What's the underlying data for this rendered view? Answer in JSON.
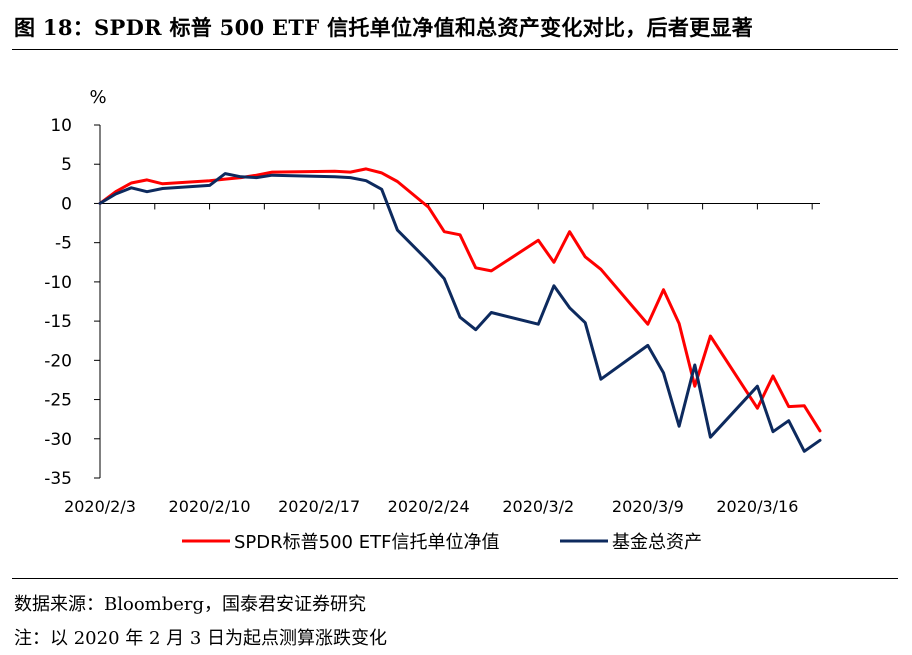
{
  "figure": {
    "title": "图 18：SPDR 标普 500 ETF 信托单位净值和总资产变化对比，后者更显著",
    "source": "数据来源：Bloomberg，国泰君安证券研究",
    "note": "注：以 2020 年 2 月 3 日为起点测算涨跌变化"
  },
  "colors": {
    "nav": "#ff0000",
    "assets": "#0d2a5e"
  },
  "chart_data": {
    "type": "line",
    "title": "",
    "xlabel": "",
    "ylabel": "%",
    "ylim": [
      -35,
      10
    ],
    "yticks": [
      10,
      5,
      0,
      -5,
      -10,
      -15,
      -20,
      -25,
      -30,
      -35
    ],
    "xlim": [
      "2020-02-03",
      "2020-03-20"
    ],
    "xticks": [
      "2020/2/3",
      "2020/2/10",
      "2020/2/17",
      "2020/2/24",
      "2020/3/2",
      "2020/3/9",
      "2020/3/16"
    ],
    "xtick_dates": [
      "2020-02-03",
      "2020-02-10",
      "2020-02-17",
      "2020-02-24",
      "2020-03-02",
      "2020-03-09",
      "2020-03-16"
    ],
    "grid": false,
    "legend": "bottom",
    "series": [
      {
        "name": "SPDR标普500 ETF信托单位净值",
        "color": "#ff0000",
        "points": [
          [
            "2020-02-03",
            0
          ],
          [
            "2020-02-04",
            1.5
          ],
          [
            "2020-02-05",
            2.6
          ],
          [
            "2020-02-06",
            3.0
          ],
          [
            "2020-02-07",
            2.5
          ],
          [
            "2020-02-10",
            2.9
          ],
          [
            "2020-02-11",
            3.1
          ],
          [
            "2020-02-12",
            3.3
          ],
          [
            "2020-02-13",
            3.6
          ],
          [
            "2020-02-14",
            4.0
          ],
          [
            "2020-02-18",
            4.1
          ],
          [
            "2020-02-19",
            4.0
          ],
          [
            "2020-02-20",
            4.4
          ],
          [
            "2020-02-21",
            3.9
          ],
          [
            "2020-02-22",
            2.8
          ],
          [
            "2020-02-24",
            -0.5
          ],
          [
            "2020-02-25",
            -3.6
          ],
          [
            "2020-02-26",
            -4.0
          ],
          [
            "2020-02-27",
            -8.2
          ],
          [
            "2020-02-28",
            -8.6
          ],
          [
            "2020-03-02",
            -4.7
          ],
          [
            "2020-03-03",
            -7.5
          ],
          [
            "2020-03-04",
            -3.6
          ],
          [
            "2020-03-05",
            -6.8
          ],
          [
            "2020-03-06",
            -8.4
          ],
          [
            "2020-03-09",
            -15.4
          ],
          [
            "2020-03-10",
            -11.0
          ],
          [
            "2020-03-11",
            -15.3
          ],
          [
            "2020-03-12",
            -23.3
          ],
          [
            "2020-03-13",
            -16.9
          ],
          [
            "2020-03-16",
            -26.1
          ],
          [
            "2020-03-17",
            -22.0
          ],
          [
            "2020-03-18",
            -25.9
          ],
          [
            "2020-03-19",
            -25.8
          ],
          [
            "2020-03-20",
            -29.0
          ]
        ]
      },
      {
        "name": "基金总资产",
        "color": "#0d2a5e",
        "points": [
          [
            "2020-02-03",
            0
          ],
          [
            "2020-02-04",
            1.2
          ],
          [
            "2020-02-05",
            2.0
          ],
          [
            "2020-02-06",
            1.5
          ],
          [
            "2020-02-07",
            1.9
          ],
          [
            "2020-02-10",
            2.3
          ],
          [
            "2020-02-11",
            3.8
          ],
          [
            "2020-02-12",
            3.4
          ],
          [
            "2020-02-13",
            3.3
          ],
          [
            "2020-02-14",
            3.6
          ],
          [
            "2020-02-18",
            3.4
          ],
          [
            "2020-02-19",
            3.3
          ],
          [
            "2020-02-20",
            2.9
          ],
          [
            "2020-02-21",
            1.8
          ],
          [
            "2020-02-22",
            -3.4
          ],
          [
            "2020-02-24",
            -7.4
          ],
          [
            "2020-02-25",
            -9.6
          ],
          [
            "2020-02-26",
            -14.5
          ],
          [
            "2020-02-27",
            -16.1
          ],
          [
            "2020-02-28",
            -13.9
          ],
          [
            "2020-03-02",
            -15.4
          ],
          [
            "2020-03-03",
            -10.5
          ],
          [
            "2020-03-04",
            -13.3
          ],
          [
            "2020-03-05",
            -15.2
          ],
          [
            "2020-03-06",
            -22.4
          ],
          [
            "2020-03-09",
            -18.1
          ],
          [
            "2020-03-10",
            -21.6
          ],
          [
            "2020-03-11",
            -28.4
          ],
          [
            "2020-03-12",
            -20.6
          ],
          [
            "2020-03-13",
            -29.8
          ],
          [
            "2020-03-16",
            -23.3
          ],
          [
            "2020-03-17",
            -29.1
          ],
          [
            "2020-03-18",
            -27.7
          ],
          [
            "2020-03-19",
            -31.6
          ],
          [
            "2020-03-20",
            -30.2
          ]
        ]
      }
    ]
  }
}
